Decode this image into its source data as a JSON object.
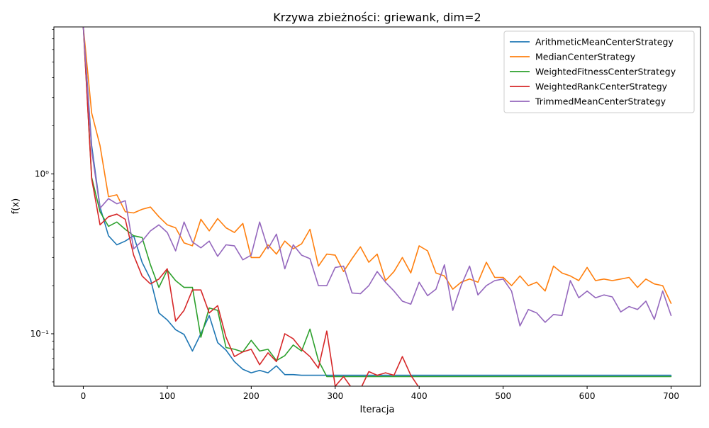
{
  "chart_data": {
    "type": "line",
    "title": "Krzywa zbieżności: griewank, dim=2",
    "xlabel": "Iteracja",
    "ylabel": "f(x)",
    "yscale": "log",
    "xlim": [
      -35,
      735
    ],
    "ylim": [
      0.047,
      8.3
    ],
    "x_ticks": [
      0,
      100,
      200,
      300,
      400,
      500,
      600,
      700
    ],
    "x_tick_labels": [
      "0",
      "100",
      "200",
      "300",
      "400",
      "500",
      "600",
      "700"
    ],
    "y_ticks": [
      0.1,
      1
    ],
    "y_tick_labels": [
      "10⁻¹",
      "10⁰"
    ],
    "grid": false,
    "legend_position": "upper right",
    "x": [
      0,
      10,
      20,
      30,
      40,
      50,
      60,
      70,
      80,
      90,
      100,
      110,
      120,
      130,
      140,
      150,
      160,
      170,
      180,
      190,
      200,
      210,
      220,
      230,
      240,
      250,
      260,
      270,
      280,
      290,
      300,
      310,
      320,
      330,
      340,
      350,
      360,
      370,
      380,
      390,
      400,
      410,
      420,
      430,
      440,
      450,
      460,
      470,
      480,
      490,
      500,
      510,
      520,
      530,
      540,
      550,
      560,
      570,
      580,
      590,
      600,
      610,
      620,
      630,
      640,
      650,
      660,
      670,
      680,
      690,
      700
    ],
    "series": [
      {
        "name": "ArithmeticMeanCenterStrategy",
        "color": "#1f77b4",
        "values": [
          8.3,
          1.5,
          0.62,
          0.41,
          0.36,
          0.38,
          0.41,
          0.28,
          0.22,
          0.135,
          0.122,
          0.106,
          0.099,
          0.078,
          0.1,
          0.13,
          0.088,
          0.079,
          0.067,
          0.06,
          0.057,
          0.059,
          0.057,
          0.063,
          0.0555,
          0.0555,
          0.055,
          0.055,
          0.055,
          0.055,
          0.055,
          0.055,
          0.055,
          0.055,
          0.055,
          0.055,
          0.055,
          0.055,
          0.055,
          0.055,
          0.055,
          0.055,
          0.055,
          0.055,
          0.055,
          0.055,
          0.055,
          0.055,
          0.055,
          0.055,
          0.055,
          0.055,
          0.055,
          0.055,
          0.055,
          0.055,
          0.055,
          0.055,
          0.055,
          0.055,
          0.055,
          0.055,
          0.055,
          0.055,
          0.055,
          0.055,
          0.055,
          0.055,
          0.055,
          0.055,
          0.055
        ]
      },
      {
        "name": "MedianCenterStrategy",
        "color": "#ff7f0e",
        "values": [
          8.3,
          2.4,
          1.5,
          0.72,
          0.74,
          0.58,
          0.57,
          0.6,
          0.62,
          0.54,
          0.48,
          0.46,
          0.37,
          0.355,
          0.52,
          0.44,
          0.525,
          0.46,
          0.43,
          0.49,
          0.3,
          0.3,
          0.36,
          0.315,
          0.38,
          0.34,
          0.365,
          0.45,
          0.265,
          0.315,
          0.31,
          0.245,
          0.295,
          0.35,
          0.28,
          0.315,
          0.215,
          0.245,
          0.3,
          0.24,
          0.355,
          0.33,
          0.24,
          0.23,
          0.19,
          0.21,
          0.22,
          0.21,
          0.28,
          0.225,
          0.225,
          0.2,
          0.23,
          0.2,
          0.21,
          0.185,
          0.265,
          0.24,
          0.23,
          0.215,
          0.26,
          0.215,
          0.22,
          0.215,
          0.22,
          0.225,
          0.195,
          0.22,
          0.205,
          0.2,
          0.155
        ]
      },
      {
        "name": "WeightedFitnessCenterStrategy",
        "color": "#2ca02c",
        "values": [
          8.3,
          0.95,
          0.58,
          0.47,
          0.5,
          0.45,
          0.41,
          0.4,
          0.27,
          0.195,
          0.25,
          0.215,
          0.195,
          0.195,
          0.095,
          0.145,
          0.14,
          0.082,
          0.08,
          0.077,
          0.091,
          0.078,
          0.08,
          0.068,
          0.073,
          0.085,
          0.078,
          0.107,
          0.068,
          0.054,
          0.054,
          0.054,
          0.054,
          0.054,
          0.054,
          0.054,
          0.054,
          0.054,
          0.054,
          0.054,
          0.054,
          0.054,
          0.054,
          0.054,
          0.054,
          0.054,
          0.054,
          0.054,
          0.054,
          0.054,
          0.054,
          0.054,
          0.054,
          0.054,
          0.054,
          0.054,
          0.054,
          0.054,
          0.054,
          0.054,
          0.054,
          0.054,
          0.054,
          0.054,
          0.054,
          0.054,
          0.054,
          0.054,
          0.054,
          0.054,
          0.054
        ]
      },
      {
        "name": "WeightedRankCenterStrategy",
        "color": "#d62728",
        "values": [
          8.3,
          0.93,
          0.48,
          0.54,
          0.56,
          0.52,
          0.31,
          0.23,
          0.205,
          0.22,
          0.255,
          0.12,
          0.14,
          0.188,
          0.188,
          0.135,
          0.15,
          0.095,
          0.072,
          0.077,
          0.08,
          0.064,
          0.076,
          0.067,
          0.1,
          0.093,
          0.08,
          0.072,
          0.061,
          0.104,
          0.047,
          0.054,
          0.0455,
          0.045,
          0.058,
          0.055,
          0.057,
          0.055,
          0.072,
          0.055,
          0.046,
          0.046,
          0.046,
          0.046,
          0.046,
          0.046,
          0.046,
          0.046,
          0.046,
          0.046,
          0.046,
          0.046,
          0.046,
          0.046,
          0.046,
          0.046,
          0.046,
          0.046,
          0.046,
          0.046,
          0.046,
          0.046,
          0.046,
          0.046,
          0.046,
          0.046,
          0.046,
          0.046,
          0.046,
          0.046,
          0.046
        ]
      },
      {
        "name": "TrimmedMeanCenterStrategy",
        "color": "#9467bd",
        "values": [
          8.3,
          1.4,
          0.61,
          0.7,
          0.65,
          0.68,
          0.34,
          0.38,
          0.44,
          0.48,
          0.43,
          0.33,
          0.5,
          0.375,
          0.345,
          0.38,
          0.305,
          0.36,
          0.355,
          0.29,
          0.31,
          0.5,
          0.34,
          0.42,
          0.255,
          0.36,
          0.31,
          0.295,
          0.2,
          0.2,
          0.26,
          0.265,
          0.18,
          0.178,
          0.2,
          0.245,
          0.21,
          0.185,
          0.16,
          0.153,
          0.21,
          0.173,
          0.19,
          0.27,
          0.14,
          0.2,
          0.265,
          0.175,
          0.2,
          0.215,
          0.22,
          0.185,
          0.112,
          0.142,
          0.135,
          0.118,
          0.132,
          0.13,
          0.215,
          0.168,
          0.185,
          0.168,
          0.175,
          0.17,
          0.137,
          0.148,
          0.142,
          0.16,
          0.123,
          0.185,
          0.13
        ]
      }
    ]
  }
}
